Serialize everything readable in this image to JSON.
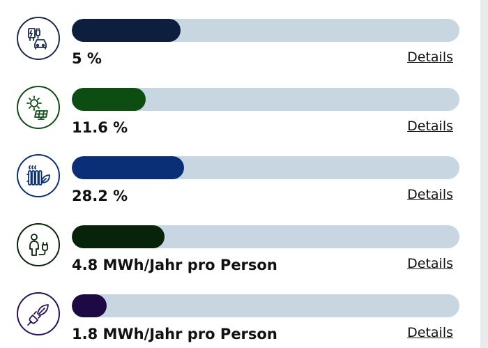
{
  "rows": [
    {
      "icon": "ev-charging-car-icon",
      "value": "5 %",
      "details": "Details",
      "level_pct": 28,
      "fill_color": "#0d1e3f",
      "icon_color": "#1b2a4a"
    },
    {
      "icon": "solar-panel-icon",
      "value": "11.6 %",
      "details": "Details",
      "level_pct": 19,
      "fill_color": "#0d4d12",
      "icon_color": "#0d4d12"
    },
    {
      "icon": "radiator-leaf-icon",
      "value": "28.2 %",
      "details": "Details",
      "level_pct": 29,
      "fill_color": "#0b2f77",
      "icon_color": "#0b2f77"
    },
    {
      "icon": "person-plug-icon",
      "value": "4.8 MWh/Jahr pro Person",
      "details": "Details",
      "level_pct": 24,
      "fill_color": "#07240a",
      "icon_color": "#07240a"
    },
    {
      "icon": "leaf-plug-icon",
      "value": "1.8 MWh/Jahr pro Person",
      "details": "Details",
      "level_pct": 9,
      "fill_color": "#1d0a45",
      "icon_color": "#2a0f5e"
    }
  ]
}
